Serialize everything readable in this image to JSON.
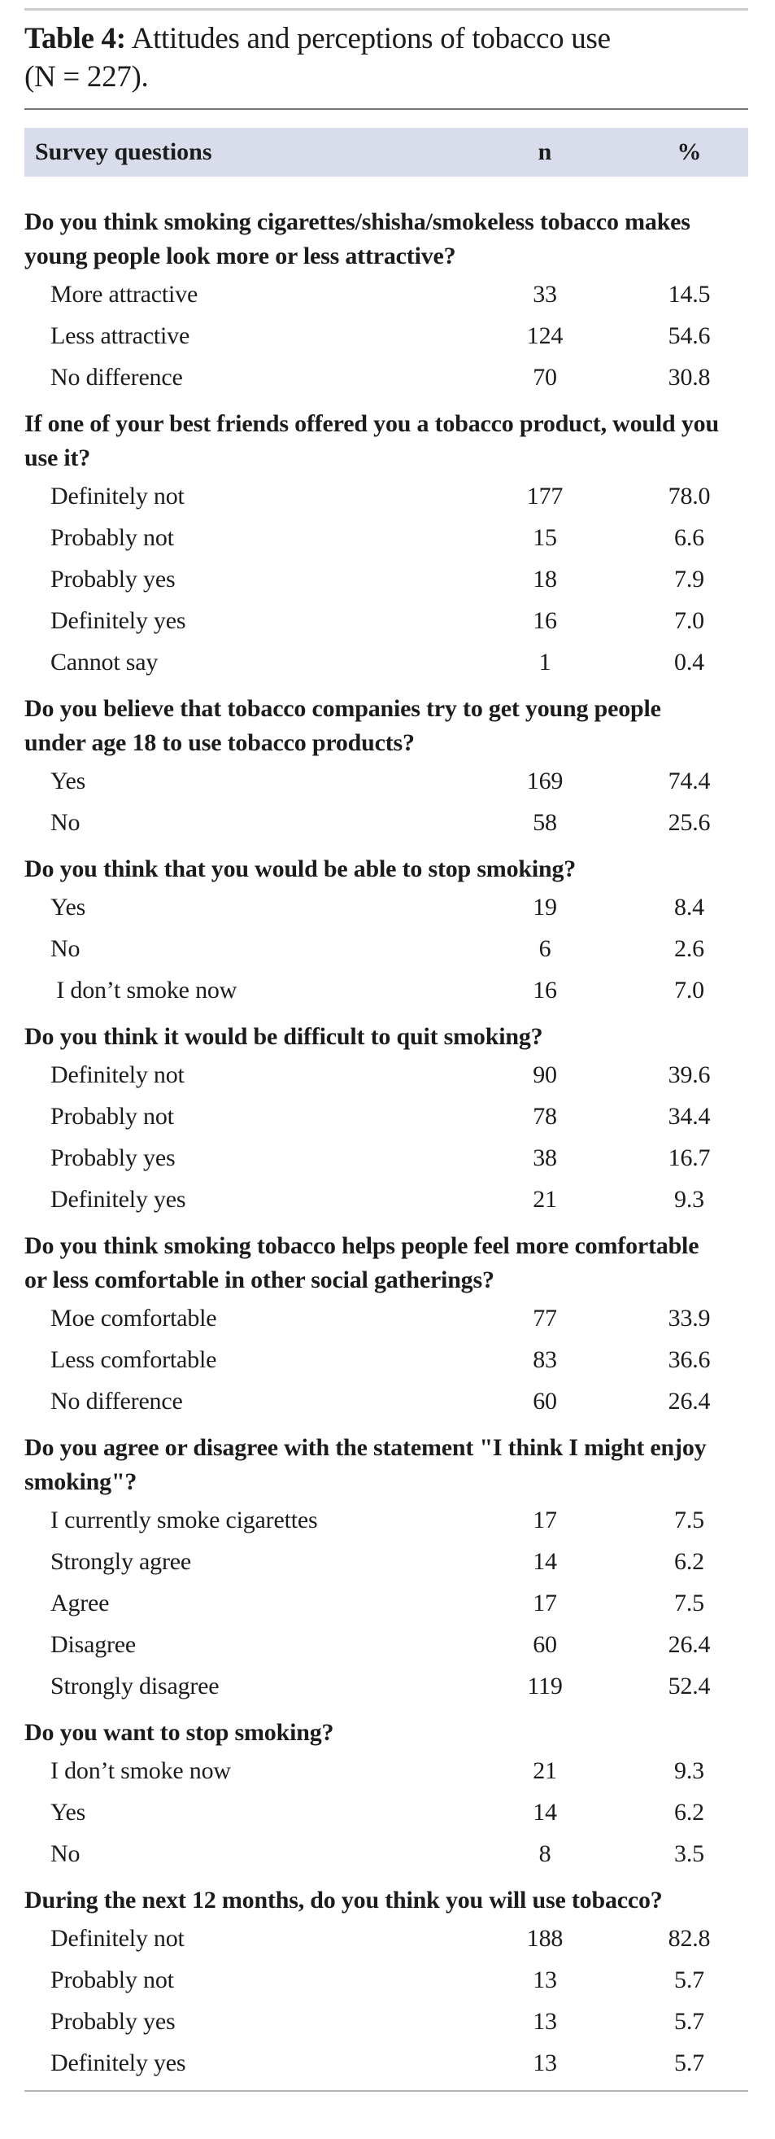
{
  "table": {
    "title_prefix": "Table 4:",
    "title_main": " Attitudes and perceptions of tobacco use",
    "title_suffix": "(N = 227).",
    "header": {
      "question": "Survey questions",
      "n": "n",
      "percent": "%"
    },
    "sections": [
      {
        "question": "Do you think smoking cigarettes/shisha/smokeless tobacco makes young people look more or less attractive?",
        "rows": [
          {
            "label": "More attractive",
            "n": "33",
            "percent": "14.5"
          },
          {
            "label": "Less attractive",
            "n": "124",
            "percent": "54.6"
          },
          {
            "label": "No difference",
            "n": "70",
            "percent": "30.8"
          }
        ]
      },
      {
        "question": "If one of your best friends offered you a tobacco product, would you use it?",
        "rows": [
          {
            "label": "Definitely not",
            "n": "177",
            "percent": "78.0"
          },
          {
            "label": "Probably not",
            "n": "15",
            "percent": "6.6"
          },
          {
            "label": "Probably yes",
            "n": "18",
            "percent": "7.9"
          },
          {
            "label": "Definitely yes",
            "n": "16",
            "percent": "7.0"
          },
          {
            "label": "Cannot say",
            "n": "1",
            "percent": "0.4"
          }
        ]
      },
      {
        "question": "Do you believe that tobacco companies try to get young people under age 18 to use tobacco products?",
        "rows": [
          {
            "label": "Yes",
            "n": "169",
            "percent": "74.4"
          },
          {
            "label": "No",
            "n": "58",
            "percent": "25.6"
          }
        ]
      },
      {
        "question": "Do you think that you would be able to stop smoking?",
        "rows": [
          {
            "label": "Yes",
            "n": "19",
            "percent": "8.4"
          },
          {
            "label": "No",
            "n": "6",
            "percent": "2.6"
          },
          {
            "label": " I don’t smoke now",
            "n": "16",
            "percent": "7.0"
          }
        ]
      },
      {
        "question": "Do you think it would be difficult to quit smoking?",
        "rows": [
          {
            "label": "Definitely not",
            "n": "90",
            "percent": "39.6"
          },
          {
            "label": "Probably not",
            "n": "78",
            "percent": "34.4"
          },
          {
            "label": "Probably yes",
            "n": "38",
            "percent": "16.7"
          },
          {
            "label": "Definitely yes",
            "n": "21",
            "percent": "9.3"
          }
        ]
      },
      {
        "question": "Do you think smoking tobacco helps people feel more comfortable or less comfortable in other social gatherings?",
        "rows": [
          {
            "label": "Moe comfortable",
            "n": "77",
            "percent": "33.9"
          },
          {
            "label": "Less comfortable",
            "n": "83",
            "percent": "36.6"
          },
          {
            "label": "No difference",
            "n": "60",
            "percent": "26.4"
          }
        ]
      },
      {
        "question": "Do you agree or disagree with the statement \"I think I might enjoy smoking\"?",
        "rows": [
          {
            "label": "I currently smoke cigarettes",
            "n": "17",
            "percent": "7.5"
          },
          {
            "label": "Strongly agree",
            "n": "14",
            "percent": "6.2"
          },
          {
            "label": "Agree",
            "n": "17",
            "percent": "7.5"
          },
          {
            "label": "Disagree",
            "n": "60",
            "percent": "26.4"
          },
          {
            "label": "Strongly disagree",
            "n": "119",
            "percent": "52.4"
          }
        ]
      },
      {
        "question": "Do you want to stop smoking?",
        "rows": [
          {
            "label": "I don’t smoke now",
            "n": "21",
            "percent": "9.3"
          },
          {
            "label": "Yes",
            "n": "14",
            "percent": "6.2"
          },
          {
            "label": "No",
            "n": "8",
            "percent": "3.5"
          }
        ]
      },
      {
        "question": "During the next 12 months, do you think you will use tobacco?",
        "rows": [
          {
            "label": "Definitely not",
            "n": "188",
            "percent": "82.8"
          },
          {
            "label": "Probably not",
            "n": "13",
            "percent": "5.7"
          },
          {
            "label": "Probably yes",
            "n": "13",
            "percent": "5.7"
          },
          {
            "label": "Definitely yes",
            "n": "13",
            "percent": "5.7"
          }
        ]
      }
    ]
  },
  "colors": {
    "header_band": "#d9dceb",
    "text": "#1c1c1c",
    "rule_top": "#cbcbcb",
    "rule_title": "#777777",
    "rule_bottom": "#b3b3b3"
  }
}
